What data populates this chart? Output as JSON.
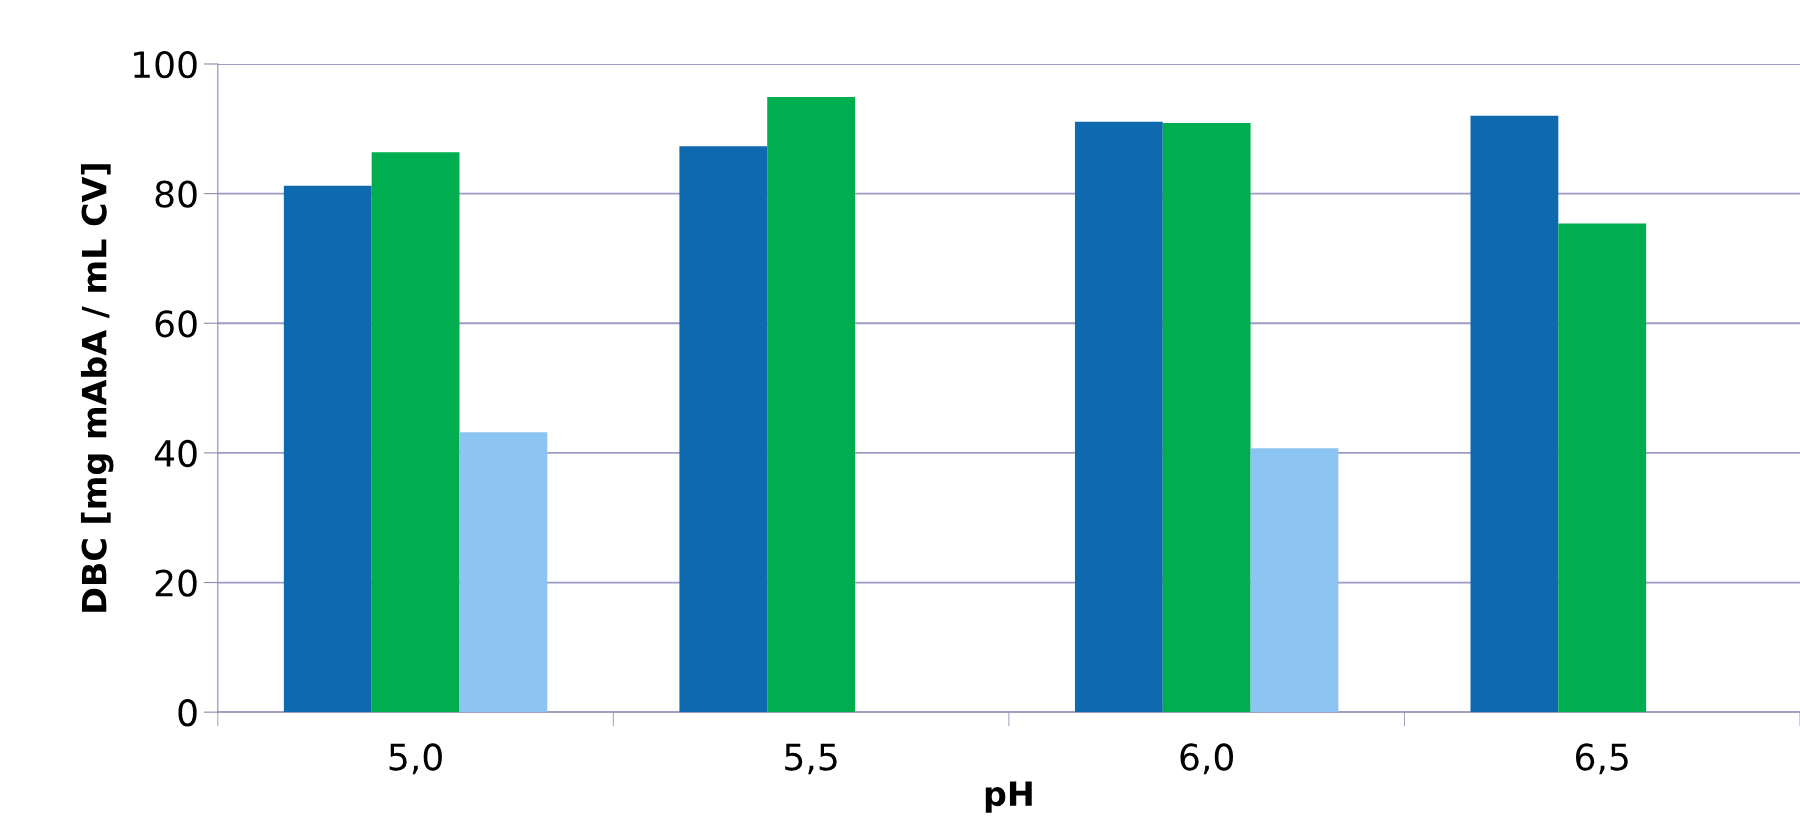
{
  "chart_data": {
    "type": "bar",
    "xlabel": "pH",
    "ylabel": "DBC [mg mAbA / mL CV]",
    "categories": [
      "5,0",
      "5,5",
      "6,0",
      "6,5"
    ],
    "series": [
      {
        "color": "#0f69af",
        "values": [
          81.2,
          87.3,
          91.1,
          92.0
        ]
      },
      {
        "color": "#00ad4f",
        "values": [
          86.4,
          94.9,
          90.9,
          75.4
        ]
      },
      {
        "color": "#8cc4f2",
        "values": [
          43.2,
          null,
          40.7,
          null
        ]
      }
    ],
    "ylim": [
      0,
      100
    ],
    "yticks": [
      0,
      20,
      40,
      60,
      80,
      100
    ],
    "grid": "y"
  }
}
